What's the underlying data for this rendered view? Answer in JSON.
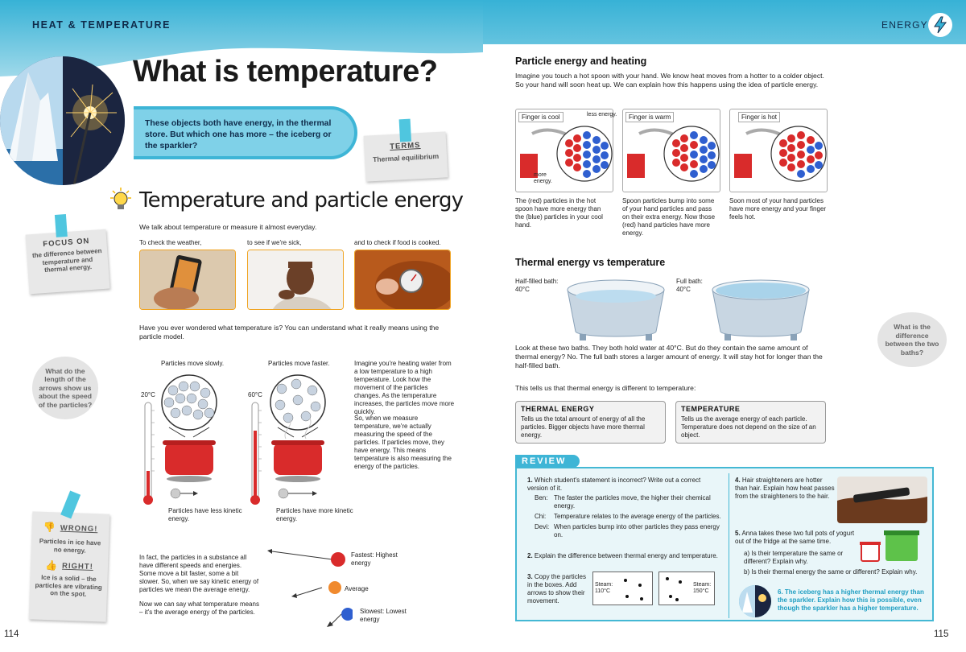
{
  "left_page": {
    "section_tag": "HEAT & TEMPERATURE",
    "title": "What is temperature?",
    "intro": "These objects both have energy, in the thermal store. But which one has more – the iceberg or the sparkler?",
    "terms": {
      "label": "TERMS",
      "value": "Thermal equilibrium"
    },
    "heading": "Temperature and particle energy",
    "para1": "We talk about temperature or measure it almost everyday.",
    "photo_captions": [
      "To check the weather,",
      "to see if we're sick,",
      "and to check if food is cooked."
    ],
    "focus": {
      "label": "FOCUS ON",
      "text": "the difference between temperature and thermal energy."
    },
    "para2": "Have you ever wondered what temperature is? You can understand what it really means using the particle model.",
    "question_bubble": "What do the length of the arrows show us about the speed of the particles?",
    "diagram": {
      "slow_label": "Particles move slowly.",
      "fast_label": "Particles move faster.",
      "temp_left": "20°C",
      "temp_right": "60°C",
      "slow_caption": "Particles have less kinetic energy.",
      "fast_caption": "Particles have more kinetic energy."
    },
    "explain1": "Imagine you're heating water from a low temperature to a high temperature. Look how the movement of the particles changes. As the temperature increases, the particles move more quickly.",
    "explain2": "So, when we measure temperature, we're actually measuring the speed of the particles. If particles move, they have energy. This means temperature is also measuring the energy of the particles.",
    "wrong_right": {
      "wrong_label": "WRONG!",
      "wrong_text": "Particles in ice have no energy.",
      "right_label": "RIGHT!",
      "right_text": "Ice is a solid – the particles are vibrating on the spot."
    },
    "para3": "In fact, the particles in a substance all have different speeds and energies. Some move a bit faster, some a bit slower. So, when we say kinetic energy of particles we mean the average energy.",
    "para4": "Now we can say what temperature means – it's the average energy of the particles.",
    "speed_legend": {
      "fastest": "Fastest: Highest energy",
      "average": "Average",
      "slowest": "Slowest: Lowest energy"
    },
    "page_number": "114"
  },
  "right_page": {
    "section_tag": "ENERGY",
    "heading1": "Particle energy and heating",
    "para1": "Imagine you touch a hot spoon with your hand. We know heat moves from a hotter to a colder object. So your hand will soon heat up. We can explain how this happens using the idea of particle energy.",
    "panels": [
      {
        "label": "Finger is cool",
        "caption": "The (red) particles in the hot spoon have more energy than the (blue) particles in your cool hand."
      },
      {
        "label": "Finger is warm",
        "caption": "Spoon particles bump into some of your hand particles and pass on their extra energy. Now those (red) hand particles have more energy."
      },
      {
        "label": "Finger is hot",
        "caption": "Soon most of your hand particles have more energy and your finger feels hot."
      }
    ],
    "less_energy": "less energy.",
    "more_energy": "more energy.",
    "heading2": "Thermal energy vs temperature",
    "bath_half": "Half-filled bath: 40°C",
    "bath_full": "Full bath: 40°C",
    "bubble": "What is the difference between the two baths?",
    "para2": "Look at these two baths. They both hold water at 40°C. But do they contain the same amount of thermal energy? No. The full bath stores a larger amount of energy. It will stay hot for longer than the half-filled bath.",
    "para3": "This tells us that thermal energy is different to temperature:",
    "def_thermal": {
      "title": "THERMAL ENERGY",
      "text": "Tells us the total amount of energy of all the particles. Bigger objects have more thermal energy."
    },
    "def_temp": {
      "title": "TEMPERATURE",
      "text": "Tells us the average energy of each particle. Temperature does not depend on the size of an object."
    },
    "review": {
      "label": "REVIEW",
      "q1": "Which student's statement is incorrect? Write out a correct version of it.",
      "students": [
        {
          "name": "Ben:",
          "text": "The faster the particles move, the higher their chemical energy."
        },
        {
          "name": "Chi:",
          "text": "Temperature relates to the average energy of the particles."
        },
        {
          "name": "Devi:",
          "text": "When particles bump into other particles they pass energy on."
        }
      ],
      "q2": "Explain the difference between thermal energy and temperature.",
      "q3": "Copy the particles in the boxes. Add arrows to show their movement.",
      "steam1": "Steam: 110°C",
      "steam2": "Steam: 150°C",
      "q4": "Hair straighteners are hotter than hair. Explain how heat passes from the straighteners to the hair.",
      "q5": "Anna takes these two full pots of yogurt out of the fridge at the same time.",
      "q5a": "Is their temperature the same or different? Explain why.",
      "q5b": "Is their thermal energy the same or different? Explain why.",
      "q6": "The iceberg has a higher thermal energy than the sparkler. Explain how this is possible, even though the sparkler has a higher temperature."
    },
    "page_number": "115"
  },
  "colors": {
    "cyan": "#3eb5d6",
    "dark_blue": "#0f2b4a",
    "orange": "#f0a524",
    "red": "#d92b2b",
    "blue": "#2f5fd0"
  }
}
